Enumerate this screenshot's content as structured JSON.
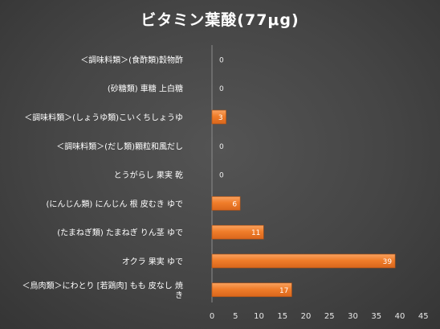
{
  "chart_data": {
    "type": "bar",
    "orientation": "horizontal",
    "title": "ビタミン葉酸(77μg)",
    "xlabel": "",
    "ylabel": "",
    "categories": [
      "＜調味料類＞(食酢類)穀物酢",
      "(砂糖類) 車糖 上白糖",
      "＜調味料類＞(しょうゆ類)こいくちしょうゆ",
      "＜調味料類＞(だし類)顆粒和風だし",
      "とうがらし 果実 乾",
      "(にんじん類) にんじん 根 皮むき ゆで",
      "(たまねぎ類) たまねぎ りん茎 ゆで",
      "オクラ 果実 ゆで",
      "＜鳥肉類＞にわとり [若鶏肉] もも 皮なし 焼き"
    ],
    "category_lines": [
      [
        "＜調味料類＞(食酢類)穀物酢"
      ],
      [
        "(砂糖類) 車糖 上白糖"
      ],
      [
        "＜調味料類＞(しょうゆ類)こいくちしょうゆ"
      ],
      [
        "＜調味料類＞(だし類)顆粒和風だし"
      ],
      [
        "とうがらし 果実 乾"
      ],
      [
        "(にんじん類) にんじん 根 皮むき ゆで"
      ],
      [
        "(たまねぎ類) たまねぎ りん茎 ゆで"
      ],
      [
        "オクラ 果実 ゆで"
      ],
      [
        "＜鳥肉類＞にわとり [若鶏肉] もも 皮なし 焼",
        "き"
      ]
    ],
    "values": [
      0,
      0,
      3,
      0,
      0,
      6,
      11,
      39,
      17
    ],
    "data_labels": [
      "0",
      "0",
      "3",
      "0",
      "0",
      "6",
      "11",
      "39",
      "17"
    ],
    "xticks": [
      0,
      5,
      10,
      15,
      20,
      25,
      30,
      35,
      40,
      45
    ],
    "xlim": [
      0,
      45
    ],
    "grid": false,
    "legend": "none",
    "colors": {
      "bar_fill": "#f07d2a",
      "bar_highlight": "#f9a25f",
      "bar_edge": "#b35213",
      "background": "#454545",
      "text": "#ffffff",
      "axis_line": "#8c8c8c"
    }
  }
}
